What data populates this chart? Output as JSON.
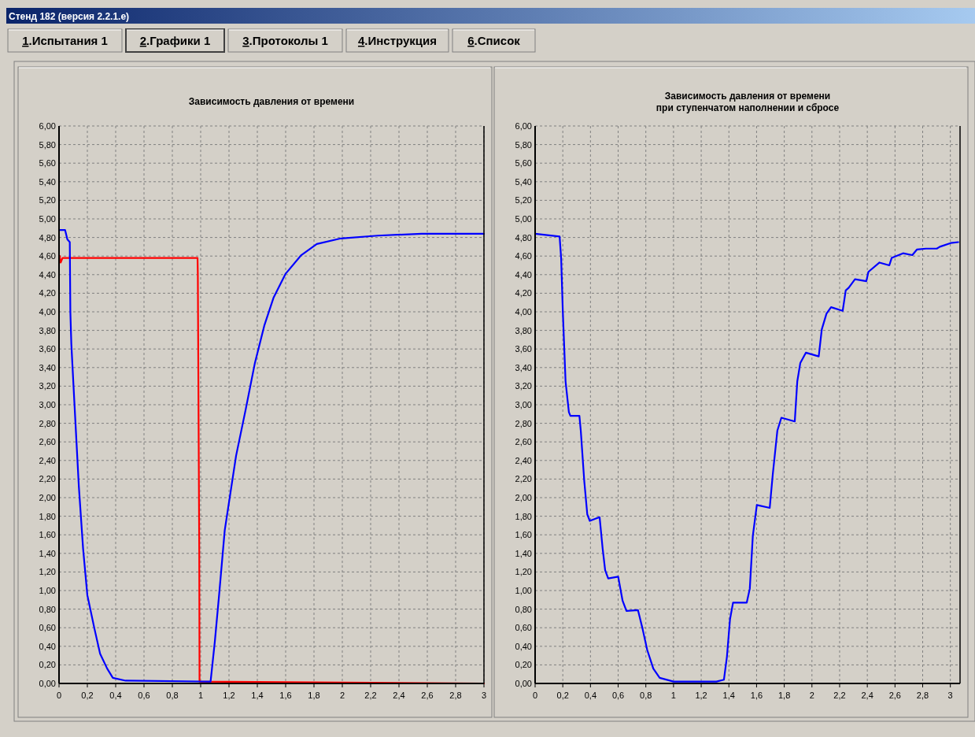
{
  "chart_data": [
    {
      "type": "line",
      "title": "Зависимость давления от времени",
      "annotations": [
        "Стенд 182 (версия 2.2.1.e)",
        "1.Испытания 1",
        "2.Графики 1",
        "3.Протоколы 1",
        "4.Инструкция",
        "6.Список"
      ],
      "grid": true,
      "xlim": [
        0,
        3
      ],
      "ylim": [
        0,
        6
      ],
      "xticks": [
        0,
        {
          "value": 0.2,
          "label": "0,2"
        },
        {
          "value": 0.4,
          "label": "0,4"
        },
        {
          "value": 0.6,
          "label": "0,6"
        },
        {
          "value": 0.8,
          "label": "0,8"
        },
        1,
        {
          "value": 1.2,
          "label": "1,2"
        },
        {
          "value": 1.4,
          "label": "1,4"
        },
        {
          "value": 1.6,
          "label": "1,6"
        },
        {
          "value": 1.8,
          "label": "1,8"
        },
        2,
        {
          "value": 2.2,
          "label": "2,2"
        },
        {
          "value": 2.4,
          "label": "2,4"
        },
        {
          "value": 2.6,
          "label": "2,6"
        },
        {
          "value": 2.8,
          "label": "2,8"
        },
        3
      ],
      "yticks": [
        {
          "value": 0,
          "label": "0,00"
        },
        {
          "value": 0.2,
          "label": "0,20"
        },
        {
          "value": 0.4,
          "label": "0,40"
        },
        {
          "value": 0.6,
          "label": "0,60"
        },
        {
          "value": 0.8,
          "label": "0,80"
        },
        {
          "value": 1,
          "label": "1,00"
        },
        {
          "value": 1.2,
          "label": "1,20"
        },
        {
          "value": 1.4,
          "label": "1,40"
        },
        {
          "value": 1.6,
          "label": "1,60"
        },
        {
          "value": 1.8,
          "label": "1,80"
        },
        {
          "value": 2,
          "label": "2,00"
        },
        {
          "value": 2.2,
          "label": "2,20"
        },
        {
          "value": 2.4,
          "label": "2,40"
        },
        {
          "value": 2.6,
          "label": "2,60"
        },
        {
          "value": 2.8,
          "label": "2,80"
        },
        {
          "value": 3,
          "label": "3,00"
        },
        {
          "value": 3.2,
          "label": "3,20"
        },
        {
          "value": 3.4,
          "label": "3,40"
        },
        {
          "value": 3.6,
          "label": "3,60"
        },
        {
          "value": 3.8,
          "label": "3,80"
        },
        {
          "value": 4,
          "label": "4,00"
        },
        {
          "value": 4.2,
          "label": "4,20"
        },
        {
          "value": 4.4,
          "label": "4,40"
        },
        {
          "value": 4.6,
          "label": "4,60"
        },
        {
          "value": 4.8,
          "label": "4,80"
        },
        {
          "value": 5,
          "label": "5,00"
        },
        {
          "value": 5.2,
          "label": "5,20"
        },
        {
          "value": 5.4,
          "label": "5,40"
        },
        {
          "value": 5.6,
          "label": "5,60"
        },
        {
          "value": 5.8,
          "label": "5,80"
        },
        {
          "value": 6,
          "label": "6,00"
        }
      ],
      "series": [
        {
          "color": "#ff0000",
          "x": [
            0.005,
            0.012,
            0.025,
            0.978,
            0.98,
            0.99,
            0.992,
            3
          ],
          "values": [
            4.6,
            4.53,
            4.58,
            4.58,
            4.4,
            1.42,
            0.02,
            0
          ]
        },
        {
          "color": "#0000ff",
          "x": [
            0,
            0.043,
            0.059,
            0.076,
            0.08,
            0.087,
            0.11,
            0.14,
            0.17,
            0.2,
            0.25,
            0.29,
            0.34,
            0.38,
            0.47,
            1.07,
            1.1,
            1.13,
            1.17,
            1.21,
            1.25,
            1.318,
            1.383,
            1.449,
            1.514,
            1.6,
            1.71,
            1.82,
            1.99,
            2.25,
            2.56,
            3
          ],
          "values": [
            4.88,
            4.88,
            4.78,
            4.75,
            4.0,
            3.65,
            2.98,
            2.12,
            1.45,
            0.95,
            0.59,
            0.32,
            0.16,
            0.06,
            0.03,
            0.02,
            0.45,
            0.95,
            1.65,
            2.05,
            2.45,
            2.95,
            3.45,
            3.85,
            4.15,
            4.41,
            4.61,
            4.73,
            4.79,
            4.82,
            4.84,
            4.84
          ]
        }
      ]
    },
    {
      "type": "line",
      "title": "Зависимость давления от времени\nпри ступенчатом наполнении и сбросе",
      "grid": true,
      "xlim": [
        0,
        3.07
      ],
      "ylim": [
        0,
        6
      ],
      "xticks": [
        0,
        {
          "value": 0.2,
          "label": "0,2"
        },
        {
          "value": 0.4,
          "label": "0,4"
        },
        {
          "value": 0.6,
          "label": "0,6"
        },
        {
          "value": 0.8,
          "label": "0,8"
        },
        1,
        {
          "value": 1.2,
          "label": "1,2"
        },
        {
          "value": 1.4,
          "label": "1,4"
        },
        {
          "value": 1.6,
          "label": "1,6"
        },
        {
          "value": 1.8,
          "label": "1,8"
        },
        2,
        {
          "value": 2.2,
          "label": "2,2"
        },
        {
          "value": 2.4,
          "label": "2,4"
        },
        {
          "value": 2.6,
          "label": "2,6"
        },
        {
          "value": 2.8,
          "label": "2,8"
        },
        3
      ],
      "yticks": [
        {
          "value": 0,
          "label": "0,00"
        },
        {
          "value": 0.2,
          "label": "0,20"
        },
        {
          "value": 0.4,
          "label": "0,40"
        },
        {
          "value": 0.6,
          "label": "0,60"
        },
        {
          "value": 0.8,
          "label": "0,80"
        },
        {
          "value": 1,
          "label": "1,00"
        },
        {
          "value": 1.2,
          "label": "1,20"
        },
        {
          "value": 1.4,
          "label": "1,40"
        },
        {
          "value": 1.6,
          "label": "1,60"
        },
        {
          "value": 1.8,
          "label": "1,80"
        },
        {
          "value": 2,
          "label": "2,00"
        },
        {
          "value": 2.2,
          "label": "2,20"
        },
        {
          "value": 2.4,
          "label": "2,40"
        },
        {
          "value": 2.6,
          "label": "2,60"
        },
        {
          "value": 2.8,
          "label": "2,80"
        },
        {
          "value": 3,
          "label": "3,00"
        },
        {
          "value": 3.2,
          "label": "3,20"
        },
        {
          "value": 3.4,
          "label": "3,40"
        },
        {
          "value": 3.6,
          "label": "3,60"
        },
        {
          "value": 3.8,
          "label": "3,80"
        },
        {
          "value": 4,
          "label": "4,00"
        },
        {
          "value": 4.2,
          "label": "4,20"
        },
        {
          "value": 4.4,
          "label": "4,40"
        },
        {
          "value": 4.6,
          "label": "4,60"
        },
        {
          "value": 4.8,
          "label": "4,80"
        },
        {
          "value": 5,
          "label": "5,00"
        },
        {
          "value": 5.2,
          "label": "5,20"
        },
        {
          "value": 5.4,
          "label": "5,40"
        },
        {
          "value": 5.6,
          "label": "5,60"
        },
        {
          "value": 5.8,
          "label": "5,80"
        },
        {
          "value": 6,
          "label": "6,00"
        }
      ],
      "series": [
        {
          "color": "#0000ff",
          "x": [
            0,
            0.177,
            0.188,
            0.2,
            0.22,
            0.244,
            0.255,
            0.32,
            0.33,
            0.355,
            0.377,
            0.395,
            0.466,
            0.488,
            0.506,
            0.528,
            0.6,
            0.632,
            0.66,
            0.743,
            0.776,
            0.81,
            0.854,
            0.9,
            1.0,
            1.31,
            1.364,
            1.386,
            1.408,
            1.43,
            1.529,
            1.551,
            1.573,
            1.602,
            1.695,
            1.717,
            1.75,
            1.779,
            1.876,
            1.894,
            1.916,
            1.956,
            2.049,
            2.071,
            2.105,
            2.138,
            2.222,
            2.244,
            2.266,
            2.311,
            2.393,
            2.408,
            2.488,
            2.559,
            2.576,
            2.658,
            2.725,
            2.758,
            2.824,
            2.902,
            2.924,
            3.002,
            3.057
          ],
          "values": [
            4.84,
            4.81,
            4.58,
            4.01,
            3.25,
            2.92,
            2.88,
            2.88,
            2.72,
            2.18,
            1.82,
            1.75,
            1.79,
            1.45,
            1.22,
            1.13,
            1.15,
            0.89,
            0.78,
            0.79,
            0.59,
            0.36,
            0.16,
            0.06,
            0.02,
            0.02,
            0.04,
            0.29,
            0.69,
            0.87,
            0.87,
            1.02,
            1.59,
            1.92,
            1.89,
            2.25,
            2.72,
            2.86,
            2.82,
            3.25,
            3.45,
            3.56,
            3.52,
            3.81,
            3.98,
            4.05,
            4.01,
            4.23,
            4.26,
            4.35,
            4.33,
            4.43,
            4.53,
            4.5,
            4.58,
            4.63,
            4.61,
            4.67,
            4.68,
            4.68,
            4.7,
            4.74,
            4.75
          ]
        }
      ]
    }
  ]
}
